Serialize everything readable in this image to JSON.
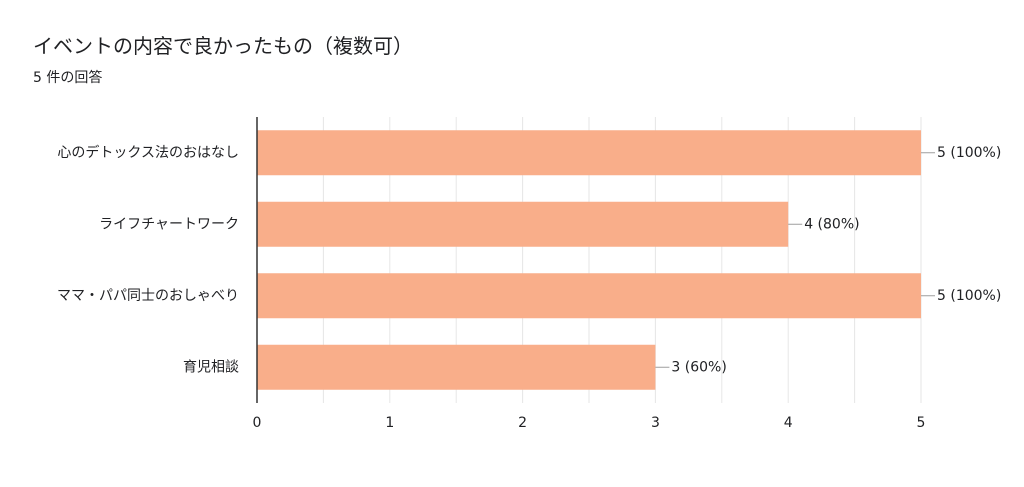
{
  "chart_data": {
    "type": "bar",
    "orientation": "horizontal",
    "title": "イベントの内容で良かったもの（複数可）",
    "subtitle": "5 件の回答",
    "categories": [
      "心のデトックス法のおはなし",
      "ライフチャートワーク",
      "ママ・パパ同士のおしゃべり",
      "育児相談"
    ],
    "values": [
      5,
      4,
      5,
      3
    ],
    "data_labels": [
      "5 (100%)",
      "4 (80%)",
      "5 (100%)",
      "3 (60%)"
    ],
    "xlim": [
      0,
      5
    ],
    "x_ticks": [
      0,
      1,
      2,
      3,
      4,
      5
    ],
    "x_tick_labels": [
      "0",
      "1",
      "2",
      "3",
      "4",
      "5"
    ],
    "grid": true,
    "bar_color": "#f9ae8a",
    "axis_color": "#333333",
    "grid_color": "#e6e6e6",
    "leader_color": "#9e9e9e"
  }
}
